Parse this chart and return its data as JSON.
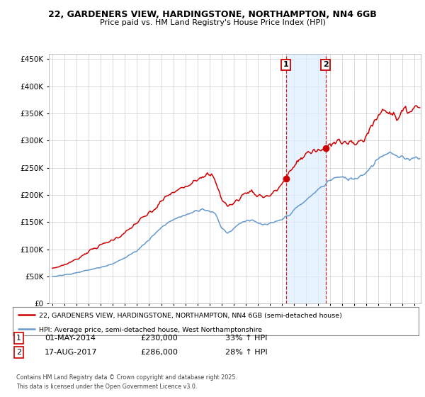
{
  "title1": "22, GARDENERS VIEW, HARDINGSTONE, NORTHAMPTON, NN4 6GB",
  "title2": "Price paid vs. HM Land Registry's House Price Index (HPI)",
  "legend_line1": "22, GARDENERS VIEW, HARDINGSTONE, NORTHAMPTON, NN4 6GB (semi-detached house)",
  "legend_line2": "HPI: Average price, semi-detached house, West Northamptonshire",
  "table_row1_num": "1",
  "table_row1_date": "01-MAY-2014",
  "table_row1_price": "£230,000",
  "table_row1_hpi": "33% ↑ HPI",
  "table_row2_num": "2",
  "table_row2_date": "17-AUG-2017",
  "table_row2_price": "£286,000",
  "table_row2_hpi": "28% ↑ HPI",
  "footer": "Contains HM Land Registry data © Crown copyright and database right 2025.\nThis data is licensed under the Open Government Licence v3.0.",
  "sale1_date": 2014.33,
  "sale1_price": 230000,
  "sale2_date": 2017.62,
  "sale2_price": 286000,
  "property_color": "#cc0000",
  "hpi_color": "#6699cc",
  "shade_color": "#ddeeff",
  "vline_color": "#cc0000",
  "background_color": "#ffffff",
  "grid_color": "#cccccc",
  "ylim": [
    0,
    460000
  ],
  "yticks": [
    0,
    50000,
    100000,
    150000,
    200000,
    250000,
    300000,
    350000,
    400000,
    450000
  ],
  "xlim_start": 1994.7,
  "xlim_end": 2025.5
}
